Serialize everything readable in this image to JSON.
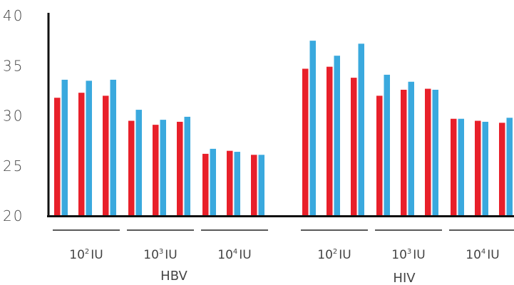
{
  "chart_data": {
    "type": "bar",
    "title": "",
    "xlabel": "",
    "ylabel": "",
    "ylim": [
      20,
      40
    ],
    "yticks": [
      "20",
      "25",
      "30",
      "35",
      "40"
    ],
    "grid": false,
    "legend": "none",
    "series_colors": [
      "#e8202a",
      "#3aa9de"
    ],
    "categories": [
      {
        "label": "HBV",
        "groups": [
          {
            "base": "10",
            "exp": "2",
            "unit": "IU",
            "pairs": [
              [
                31.8,
                33.6
              ],
              [
                32.3,
                33.5
              ],
              [
                32.0,
                33.6
              ]
            ]
          },
          {
            "base": "10",
            "exp": "3",
            "unit": "IU",
            "pairs": [
              [
                29.5,
                30.6
              ],
              [
                29.1,
                29.6
              ],
              [
                29.4,
                29.9
              ]
            ]
          },
          {
            "base": "10",
            "exp": "4",
            "unit": "IU",
            "pairs": [
              [
                26.2,
                26.7
              ],
              [
                26.5,
                26.4
              ],
              [
                26.1,
                26.1
              ]
            ]
          }
        ]
      },
      {
        "label": "HIV",
        "groups": [
          {
            "base": "10",
            "exp": "2",
            "unit": "IU",
            "pairs": [
              [
                34.7,
                37.5
              ],
              [
                34.9,
                36.0
              ],
              [
                33.8,
                37.2
              ]
            ]
          },
          {
            "base": "10",
            "exp": "3",
            "unit": "IU",
            "pairs": [
              [
                32.0,
                34.1
              ],
              [
                32.6,
                33.4
              ],
              [
                32.7,
                32.6
              ]
            ]
          },
          {
            "base": "10",
            "exp": "4",
            "unit": "IU",
            "pairs": [
              [
                29.7,
                29.7
              ],
              [
                29.5,
                29.4
              ],
              [
                29.3,
                29.8
              ]
            ]
          }
        ]
      }
    ]
  }
}
